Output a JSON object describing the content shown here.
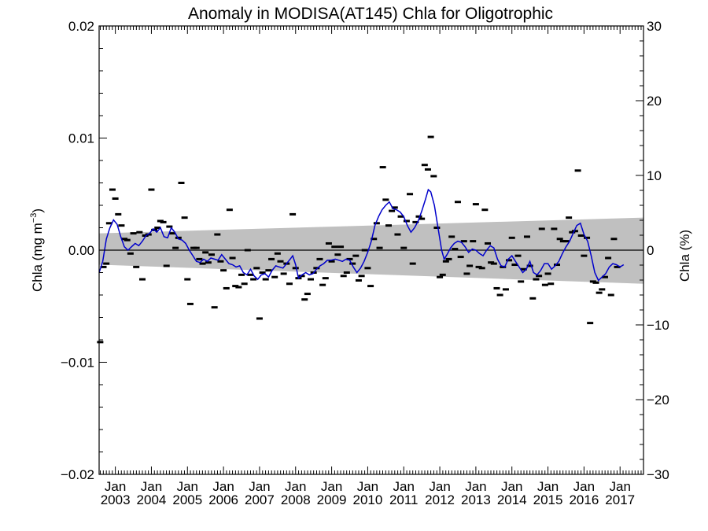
{
  "chart_data": {
    "type": "scatter",
    "title": "Anomaly in MODISA(AT145) Chla for Oligotrophic",
    "ylabel_left": "Chla (mg m",
    "ylabel_left_sup": "−3",
    "ylabel_left_close": ")",
    "ylabel_right": "Chla (%)",
    "ylim_left": [
      -0.02,
      0.02
    ],
    "ylim_right": [
      -30,
      30
    ],
    "xlim": [
      2002.55,
      2017.65
    ],
    "yticks_left": [
      -0.02,
      -0.01,
      0.0,
      0.01,
      0.02
    ],
    "ytick_labels_left": [
      "−0.02",
      "−0.01",
      "0.00",
      "0.01",
      "0.02"
    ],
    "yticks_right": [
      -30,
      -20,
      -10,
      0,
      10,
      20,
      30
    ],
    "ytick_labels_right": [
      "−30",
      "−20",
      "−10",
      "0",
      "10",
      "20",
      "30"
    ],
    "xticks": [
      {
        "pos": 2003,
        "line1": "Jan",
        "line2": "2003"
      },
      {
        "pos": 2004,
        "line1": "Jan",
        "line2": "2004"
      },
      {
        "pos": 2005,
        "line1": "Jan",
        "line2": "2005"
      },
      {
        "pos": 2006,
        "line1": "Jan",
        "line2": "2006"
      },
      {
        "pos": 2007,
        "line1": "Jan",
        "line2": "2007"
      },
      {
        "pos": 2008,
        "line1": "Jan",
        "line2": "2008"
      },
      {
        "pos": 2009,
        "line1": "Jan",
        "line2": "2009"
      },
      {
        "pos": 2010,
        "line1": "Jan",
        "line2": "2010"
      },
      {
        "pos": 2011,
        "line1": "Jan",
        "line2": "2011"
      },
      {
        "pos": 2012,
        "line1": "Jan",
        "line2": "2012"
      },
      {
        "pos": 2013,
        "line1": "Jan",
        "line2": "2013"
      },
      {
        "pos": 2014,
        "line1": "Jan",
        "line2": "2014"
      },
      {
        "pos": 2015,
        "line1": "Jan",
        "line2": "2015"
      },
      {
        "pos": 2016,
        "line1": "Jan",
        "line2": "2016"
      },
      {
        "pos": 2017,
        "line1": "Jan",
        "line2": "2017"
      }
    ],
    "trend_band": {
      "x": [
        2002.55,
        2017.65
      ],
      "upper": [
        0.0015,
        0.0029
      ],
      "lower": [
        -0.0013,
        -0.003
      ],
      "color": "#c0c0c0"
    },
    "zero_line": 0.0,
    "colors": {
      "points": "#000000",
      "smooth": "#0000cc",
      "band": "#c0c0c0"
    },
    "points": [
      [
        2002.58,
        -0.0082
      ],
      [
        2002.67,
        -0.0015
      ],
      [
        2002.75,
        -0.0012
      ],
      [
        2002.83,
        0.0024
      ],
      [
        2002.92,
        0.0054
      ],
      [
        2003.0,
        0.0046
      ],
      [
        2003.08,
        0.0032
      ],
      [
        2003.17,
        0.0022
      ],
      [
        2003.25,
        0.001
      ],
      [
        2003.33,
        0.0009
      ],
      [
        2003.42,
        -0.0003
      ],
      [
        2003.5,
        0.0015
      ],
      [
        2003.58,
        -0.0015
      ],
      [
        2003.67,
        0.0016
      ],
      [
        2003.75,
        -0.0026
      ],
      [
        2003.83,
        0.0013
      ],
      [
        2003.92,
        0.0014
      ],
      [
        2004.0,
        0.0054
      ],
      [
        2004.08,
        0.0018
      ],
      [
        2004.17,
        0.002
      ],
      [
        2004.25,
        0.0026
      ],
      [
        2004.33,
        0.0025
      ],
      [
        2004.42,
        -0.0014
      ],
      [
        2004.5,
        0.0021
      ],
      [
        2004.58,
        0.0015
      ],
      [
        2004.67,
        0.0002
      ],
      [
        2004.75,
        0.0011
      ],
      [
        2004.83,
        0.006
      ],
      [
        2004.92,
        0.0029
      ],
      [
        2005.0,
        -0.0026
      ],
      [
        2005.08,
        -0.0048
      ],
      [
        2005.17,
        0.0002
      ],
      [
        2005.25,
        0.0002
      ],
      [
        2005.33,
        -0.0008
      ],
      [
        2005.42,
        -0.0012
      ],
      [
        2005.5,
        -0.0002
      ],
      [
        2005.58,
        -0.0011
      ],
      [
        2005.67,
        -0.0004
      ],
      [
        2005.75,
        -0.0051
      ],
      [
        2005.83,
        0.0014
      ],
      [
        2005.92,
        -0.001
      ],
      [
        2006.0,
        -0.0018
      ],
      [
        2006.08,
        -0.0034
      ],
      [
        2006.17,
        0.0036
      ],
      [
        2006.25,
        -0.0007
      ],
      [
        2006.33,
        -0.0032
      ],
      [
        2006.42,
        -0.0033
      ],
      [
        2006.5,
        -0.0022
      ],
      [
        2006.58,
        -0.003
      ],
      [
        2006.67,
        0.0
      ],
      [
        2006.75,
        -0.0022
      ],
      [
        2006.83,
        -0.0026
      ],
      [
        2006.92,
        -0.0016
      ],
      [
        2007.0,
        -0.0061
      ],
      [
        2007.08,
        -0.002
      ],
      [
        2007.17,
        -0.0026
      ],
      [
        2007.25,
        -0.0018
      ],
      [
        2007.33,
        -0.0008
      ],
      [
        2007.42,
        -0.0024
      ],
      [
        2007.5,
        -0.0003
      ],
      [
        2007.58,
        -0.001
      ],
      [
        2007.67,
        -0.0021
      ],
      [
        2007.75,
        -0.0012
      ],
      [
        2007.83,
        -0.003
      ],
      [
        2007.92,
        0.0032
      ],
      [
        2008.0,
        -0.0016
      ],
      [
        2008.08,
        -0.0025
      ],
      [
        2008.17,
        -0.0023
      ],
      [
        2008.25,
        -0.0044
      ],
      [
        2008.33,
        -0.0039
      ],
      [
        2008.42,
        -0.0026
      ],
      [
        2008.5,
        -0.002
      ],
      [
        2008.58,
        -0.0016
      ],
      [
        2008.67,
        -0.0008
      ],
      [
        2008.75,
        -0.0031
      ],
      [
        2008.83,
        -0.0025
      ],
      [
        2008.92,
        0.0006
      ],
      [
        2009.0,
        -0.001
      ],
      [
        2009.08,
        0.0003
      ],
      [
        2009.17,
        -0.0004
      ],
      [
        2009.25,
        0.0003
      ],
      [
        2009.33,
        -0.0023
      ],
      [
        2009.42,
        -0.002
      ],
      [
        2009.5,
        -0.0008
      ],
      [
        2009.58,
        -0.0012
      ],
      [
        2009.67,
        -0.0005
      ],
      [
        2009.75,
        -0.0027
      ],
      [
        2009.83,
        -0.0023
      ],
      [
        2009.92,
        0.0
      ],
      [
        2010.0,
        -0.0016
      ],
      [
        2010.08,
        -0.0032
      ],
      [
        2010.17,
        0.001
      ],
      [
        2010.25,
        0.0024
      ],
      [
        2010.33,
        0.0002
      ],
      [
        2010.42,
        0.0074
      ],
      [
        2010.5,
        0.0045
      ],
      [
        2010.58,
        0.0022
      ],
      [
        2010.67,
        0.0035
      ],
      [
        2010.75,
        0.0038
      ],
      [
        2010.83,
        0.0014
      ],
      [
        2010.92,
        0.003
      ],
      [
        2011.0,
        0.0002
      ],
      [
        2011.08,
        0.0026
      ],
      [
        2011.17,
        0.005
      ],
      [
        2011.25,
        -0.0012
      ],
      [
        2011.33,
        0.0025
      ],
      [
        2011.42,
        0.003
      ],
      [
        2011.5,
        0.0028
      ],
      [
        2011.58,
        0.0076
      ],
      [
        2011.67,
        0.0072
      ],
      [
        2011.75,
        0.0101
      ],
      [
        2011.83,
        0.0066
      ],
      [
        2011.92,
        0.002
      ],
      [
        2012.0,
        -0.0024
      ],
      [
        2012.08,
        -0.0022
      ],
      [
        2012.17,
        -0.001
      ],
      [
        2012.25,
        -0.0008
      ],
      [
        2012.33,
        0.0012
      ],
      [
        2012.42,
        0.0001
      ],
      [
        2012.5,
        0.0043
      ],
      [
        2012.58,
        -0.0006
      ],
      [
        2012.67,
        0.0008
      ],
      [
        2012.75,
        -0.0021
      ],
      [
        2012.83,
        -0.0014
      ],
      [
        2012.92,
        0.0008
      ],
      [
        2013.0,
        0.0041
      ],
      [
        2013.08,
        -0.0015
      ],
      [
        2013.17,
        -0.0016
      ],
      [
        2013.25,
        0.0036
      ],
      [
        2013.33,
        0.0006
      ],
      [
        2013.42,
        -0.0011
      ],
      [
        2013.5,
        -0.0012
      ],
      [
        2013.58,
        -0.0034
      ],
      [
        2013.67,
        -0.004
      ],
      [
        2013.75,
        -0.0015
      ],
      [
        2013.83,
        -0.0035
      ],
      [
        2013.92,
        -0.0009
      ],
      [
        2014.0,
        0.0011
      ],
      [
        2014.08,
        -0.0013
      ],
      [
        2014.17,
        -0.0005
      ],
      [
        2014.25,
        -0.0028
      ],
      [
        2014.33,
        -0.0017
      ],
      [
        2014.42,
        0.0012
      ],
      [
        2014.5,
        -0.0014
      ],
      [
        2014.58,
        -0.0043
      ],
      [
        2014.67,
        -0.0026
      ],
      [
        2014.75,
        -0.0023
      ],
      [
        2014.83,
        0.0019
      ],
      [
        2014.92,
        -0.0031
      ],
      [
        2015.0,
        -0.0021
      ],
      [
        2015.08,
        -0.003
      ],
      [
        2015.17,
        0.0019
      ],
      [
        2015.25,
        -0.0013
      ],
      [
        2015.33,
        0.001
      ],
      [
        2015.42,
        0.0008
      ],
      [
        2015.5,
        0.0008
      ],
      [
        2015.58,
        0.0029
      ],
      [
        2015.67,
        0.0016
      ],
      [
        2015.75,
        0.0017
      ],
      [
        2015.83,
        0.0071
      ],
      [
        2015.92,
        0.0013
      ],
      [
        2016.0,
        -0.0005
      ],
      [
        2016.08,
        0.0011
      ],
      [
        2016.17,
        -0.0065
      ],
      [
        2016.25,
        -0.0028
      ],
      [
        2016.33,
        -0.0029
      ],
      [
        2016.42,
        -0.0038
      ],
      [
        2016.5,
        -0.0035
      ],
      [
        2016.58,
        -0.0024
      ],
      [
        2016.67,
        -0.0007
      ],
      [
        2016.75,
        -0.004
      ],
      [
        2016.83,
        0.001
      ],
      [
        2016.92,
        -0.0015
      ]
    ],
    "smooth": [
      [
        2002.55,
        -0.002
      ],
      [
        2002.65,
        -0.001
      ],
      [
        2002.75,
        0.001
      ],
      [
        2002.85,
        0.002
      ],
      [
        2002.95,
        0.0027
      ],
      [
        2003.05,
        0.0023
      ],
      [
        2003.15,
        0.0012
      ],
      [
        2003.25,
        0.0003
      ],
      [
        2003.35,
        0.0
      ],
      [
        2003.45,
        0.0003
      ],
      [
        2003.55,
        0.0006
      ],
      [
        2003.65,
        0.0004
      ],
      [
        2003.75,
        0.0008
      ],
      [
        2003.85,
        0.0013
      ],
      [
        2003.95,
        0.0015
      ],
      [
        2004.05,
        0.0019
      ],
      [
        2004.15,
        0.0016
      ],
      [
        2004.25,
        0.002
      ],
      [
        2004.35,
        0.0012
      ],
      [
        2004.45,
        0.0011
      ],
      [
        2004.55,
        0.002
      ],
      [
        2004.65,
        0.0016
      ],
      [
        2004.75,
        0.001
      ],
      [
        2004.85,
        0.0009
      ],
      [
        2004.95,
        0.0006
      ],
      [
        2005.05,
        0.0
      ],
      [
        2005.15,
        -0.0005
      ],
      [
        2005.25,
        -0.001
      ],
      [
        2005.35,
        -0.0011
      ],
      [
        2005.45,
        -0.0008
      ],
      [
        2005.55,
        -0.001
      ],
      [
        2005.65,
        -0.0007
      ],
      [
        2005.75,
        -0.0008
      ],
      [
        2005.85,
        -0.0009
      ],
      [
        2005.95,
        -0.0004
      ],
      [
        2006.05,
        -0.0008
      ],
      [
        2006.15,
        -0.0012
      ],
      [
        2006.25,
        -0.0013
      ],
      [
        2006.35,
        -0.0015
      ],
      [
        2006.45,
        -0.0014
      ],
      [
        2006.55,
        -0.002
      ],
      [
        2006.65,
        -0.0022
      ],
      [
        2006.75,
        -0.0017
      ],
      [
        2006.85,
        -0.0023
      ],
      [
        2006.95,
        -0.0026
      ],
      [
        2007.05,
        -0.0022
      ],
      [
        2007.15,
        -0.0021
      ],
      [
        2007.25,
        -0.0024
      ],
      [
        2007.35,
        -0.0018
      ],
      [
        2007.45,
        -0.0014
      ],
      [
        2007.55,
        -0.0015
      ],
      [
        2007.65,
        -0.0016
      ],
      [
        2007.75,
        -0.0012
      ],
      [
        2007.85,
        -0.0008
      ],
      [
        2007.92,
        -0.0005
      ],
      [
        2008.0,
        -0.0013
      ],
      [
        2008.08,
        -0.0025
      ],
      [
        2008.18,
        -0.0022
      ],
      [
        2008.28,
        -0.002
      ],
      [
        2008.38,
        -0.0022
      ],
      [
        2008.48,
        -0.0021
      ],
      [
        2008.58,
        -0.0017
      ],
      [
        2008.68,
        -0.0014
      ],
      [
        2008.78,
        -0.0012
      ],
      [
        2008.88,
        -0.0009
      ],
      [
        2008.98,
        -0.0009
      ],
      [
        2009.1,
        -0.0008
      ],
      [
        2009.2,
        -0.0009
      ],
      [
        2009.3,
        -0.001
      ],
      [
        2009.4,
        -0.0008
      ],
      [
        2009.5,
        -0.0009
      ],
      [
        2009.6,
        -0.0015
      ],
      [
        2009.7,
        -0.002
      ],
      [
        2009.8,
        -0.0016
      ],
      [
        2009.9,
        -0.001
      ],
      [
        2010.0,
        -0.0002
      ],
      [
        2010.1,
        0.0008
      ],
      [
        2010.2,
        0.0022
      ],
      [
        2010.3,
        0.003
      ],
      [
        2010.4,
        0.0036
      ],
      [
        2010.5,
        0.004
      ],
      [
        2010.6,
        0.0043
      ],
      [
        2010.7,
        0.0037
      ],
      [
        2010.8,
        0.0036
      ],
      [
        2010.9,
        0.0034
      ],
      [
        2011.0,
        0.003
      ],
      [
        2011.1,
        0.0022
      ],
      [
        2011.2,
        0.0016
      ],
      [
        2011.3,
        0.002
      ],
      [
        2011.4,
        0.0026
      ],
      [
        2011.5,
        0.0035
      ],
      [
        2011.6,
        0.0045
      ],
      [
        2011.68,
        0.0054
      ],
      [
        2011.75,
        0.0052
      ],
      [
        2011.85,
        0.004
      ],
      [
        2011.95,
        0.002
      ],
      [
        2012.05,
        0.0
      ],
      [
        2012.12,
        -0.0008
      ],
      [
        2012.2,
        -0.0004
      ],
      [
        2012.3,
        0.0002
      ],
      [
        2012.4,
        0.0006
      ],
      [
        2012.5,
        0.0008
      ],
      [
        2012.6,
        0.0007
      ],
      [
        2012.7,
        0.0003
      ],
      [
        2012.8,
        -0.0002
      ],
      [
        2012.9,
        0.0001
      ],
      [
        2013.0,
        0.0
      ],
      [
        2013.1,
        -0.0003
      ],
      [
        2013.2,
        -0.0005
      ],
      [
        2013.3,
        0.0
      ],
      [
        2013.4,
        0.0004
      ],
      [
        2013.5,
        0.0002
      ],
      [
        2013.6,
        -0.0008
      ],
      [
        2013.7,
        -0.0014
      ],
      [
        2013.8,
        -0.0015
      ],
      [
        2013.9,
        -0.0008
      ],
      [
        2014.0,
        -0.0005
      ],
      [
        2014.1,
        -0.001
      ],
      [
        2014.2,
        -0.0015
      ],
      [
        2014.3,
        -0.002
      ],
      [
        2014.4,
        -0.0017
      ],
      [
        2014.5,
        -0.001
      ],
      [
        2014.6,
        -0.002
      ],
      [
        2014.7,
        -0.0022
      ],
      [
        2014.8,
        -0.0018
      ],
      [
        2014.9,
        -0.0012
      ],
      [
        2015.0,
        -0.0012
      ],
      [
        2015.1,
        -0.0017
      ],
      [
        2015.2,
        -0.0014
      ],
      [
        2015.3,
        -0.001
      ],
      [
        2015.4,
        -0.0003
      ],
      [
        2015.5,
        0.0003
      ],
      [
        2015.6,
        0.0008
      ],
      [
        2015.7,
        0.0015
      ],
      [
        2015.8,
        0.0022
      ],
      [
        2015.9,
        0.0024
      ],
      [
        2016.0,
        0.0014
      ],
      [
        2016.1,
        0.0008
      ],
      [
        2016.2,
        -0.0005
      ],
      [
        2016.3,
        -0.002
      ],
      [
        2016.4,
        -0.0027
      ],
      [
        2016.5,
        -0.0024
      ],
      [
        2016.6,
        -0.0021
      ],
      [
        2016.7,
        -0.0015
      ],
      [
        2016.8,
        -0.0012
      ],
      [
        2016.9,
        -0.0013
      ],
      [
        2017.0,
        -0.0015
      ],
      [
        2017.1,
        -0.0013
      ]
    ]
  }
}
